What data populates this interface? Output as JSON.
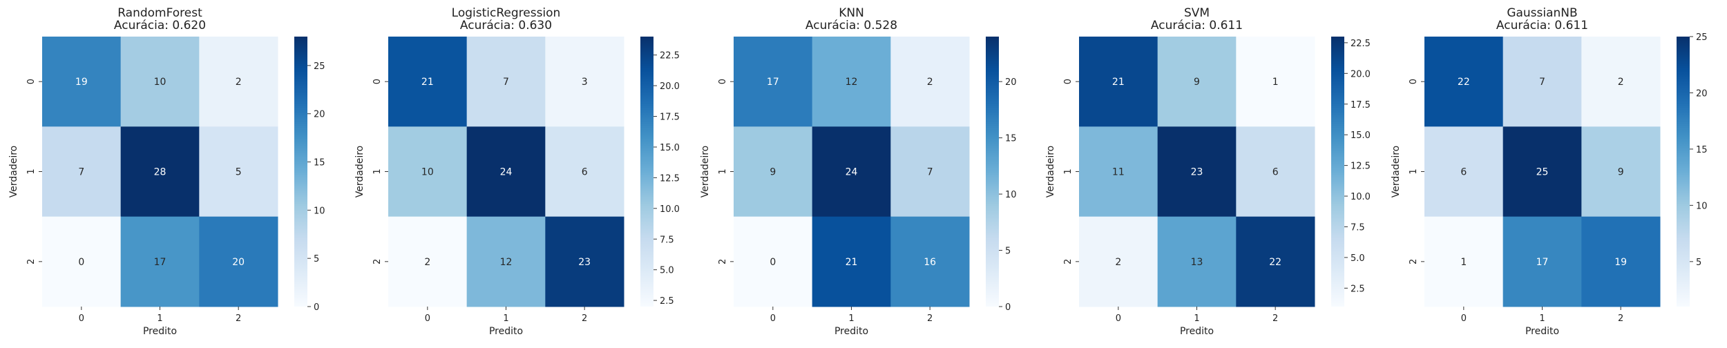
{
  "chart_data": [
    {
      "type": "heatmap",
      "title": "RandomForest",
      "subtitle": "Acurácia: 0.620",
      "xlabel": "Predito",
      "ylabel": "Verdadeiro",
      "x_categories": [
        "0",
        "1",
        "2"
      ],
      "y_categories": [
        "0",
        "1",
        "2"
      ],
      "values": [
        [
          19,
          10,
          2
        ],
        [
          7,
          28,
          5
        ],
        [
          0,
          17,
          20
        ]
      ],
      "colorbar": {
        "min": 0,
        "max": 28,
        "ticks": [
          0,
          5,
          10,
          15,
          20,
          25
        ],
        "tick_labels": [
          "0",
          "5",
          "10",
          "15",
          "20",
          "25"
        ]
      },
      "colormap": "Blues"
    },
    {
      "type": "heatmap",
      "title": "LogisticRegression",
      "subtitle": "Acurácia: 0.630",
      "xlabel": "Predito",
      "ylabel": "Verdadeiro",
      "x_categories": [
        "0",
        "1",
        "2"
      ],
      "y_categories": [
        "0",
        "1",
        "2"
      ],
      "values": [
        [
          21,
          7,
          3
        ],
        [
          10,
          24,
          6
        ],
        [
          2,
          12,
          23
        ]
      ],
      "colorbar": {
        "min": 2,
        "max": 24,
        "ticks": [
          2.5,
          5,
          7.5,
          10,
          12.5,
          15,
          17.5,
          20,
          22.5
        ],
        "tick_labels": [
          "2.5",
          "5.0",
          "7.5",
          "10.0",
          "12.5",
          "15.0",
          "17.5",
          "20.0",
          "22.5"
        ]
      },
      "colormap": "Blues"
    },
    {
      "type": "heatmap",
      "title": "KNN",
      "subtitle": "Acurácia: 0.528",
      "xlabel": "Predito",
      "ylabel": "Verdadeiro",
      "x_categories": [
        "0",
        "1",
        "2"
      ],
      "y_categories": [
        "0",
        "1",
        "2"
      ],
      "values": [
        [
          17,
          12,
          2
        ],
        [
          9,
          24,
          7
        ],
        [
          0,
          21,
          16
        ]
      ],
      "colorbar": {
        "min": 0,
        "max": 24,
        "ticks": [
          0,
          5,
          10,
          15,
          20
        ],
        "tick_labels": [
          "0",
          "5",
          "10",
          "15",
          "20"
        ]
      },
      "colormap": "Blues"
    },
    {
      "type": "heatmap",
      "title": "SVM",
      "subtitle": "Acurácia: 0.611",
      "xlabel": "Predito",
      "ylabel": "Verdadeiro",
      "x_categories": [
        "0",
        "1",
        "2"
      ],
      "y_categories": [
        "0",
        "1",
        "2"
      ],
      "values": [
        [
          21,
          9,
          1
        ],
        [
          11,
          23,
          6
        ],
        [
          2,
          13,
          22
        ]
      ],
      "colorbar": {
        "min": 1,
        "max": 23,
        "ticks": [
          2.5,
          5,
          7.5,
          10,
          12.5,
          15,
          17.5,
          20,
          22.5
        ],
        "tick_labels": [
          "2.5",
          "5.0",
          "7.5",
          "10.0",
          "12.5",
          "15.0",
          "17.5",
          "20.0",
          "22.5"
        ]
      },
      "colormap": "Blues"
    },
    {
      "type": "heatmap",
      "title": "GaussianNB",
      "subtitle": "Acurácia: 0.611",
      "xlabel": "Predito",
      "ylabel": "Verdadeiro",
      "x_categories": [
        "0",
        "1",
        "2"
      ],
      "y_categories": [
        "0",
        "1",
        "2"
      ],
      "values": [
        [
          22,
          7,
          2
        ],
        [
          6,
          25,
          9
        ],
        [
          1,
          17,
          19
        ]
      ],
      "colorbar": {
        "min": 1,
        "max": 25,
        "ticks": [
          5,
          10,
          15,
          20,
          25
        ],
        "tick_labels": [
          "5",
          "10",
          "15",
          "20",
          "25"
        ]
      },
      "colormap": "Blues"
    }
  ]
}
